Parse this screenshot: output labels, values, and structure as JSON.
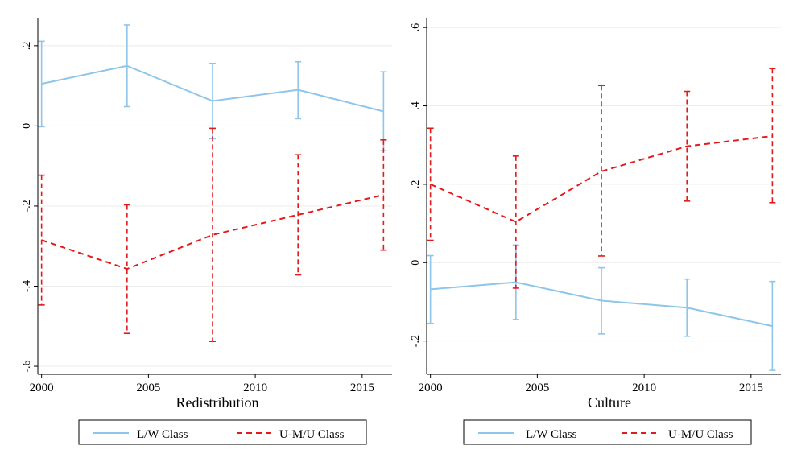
{
  "chart_data": [
    {
      "type": "line",
      "xlabel": "Redistribution",
      "ylabel": "",
      "x": [
        2000,
        2004,
        2008,
        2012,
        2016
      ],
      "xticks": [
        2000,
        2005,
        2010,
        2015
      ],
      "xlim": [
        1999.9,
        2016.4
      ],
      "yticks": [
        0.2,
        0,
        -0.2,
        -0.4,
        -0.6
      ],
      "ytick_labels": [
        ".2",
        "0",
        "-.2",
        "-.4",
        "-.6"
      ],
      "ylim": [
        -0.62,
        0.27
      ],
      "grid": "horizontal",
      "legend_position": "bottom",
      "series": [
        {
          "name": "L/W Class",
          "color": "#8ec5e8",
          "style": "solid",
          "values": [
            0.105,
            0.15,
            0.062,
            0.09,
            0.036
          ],
          "ci_low": [
            -0.002,
            0.048,
            -0.032,
            0.018,
            -0.062
          ],
          "ci_high": [
            0.211,
            0.252,
            0.156,
            0.16,
            0.135
          ]
        },
        {
          "name": "U-M/U Class",
          "color": "#e31a1c",
          "style": "dashed",
          "values": [
            -0.285,
            -0.357,
            -0.272,
            -0.222,
            -0.172
          ],
          "ci_low": [
            -0.447,
            -0.518,
            -0.538,
            -0.372,
            -0.31
          ],
          "ci_high": [
            -0.123,
            -0.197,
            -0.006,
            -0.072,
            -0.035
          ]
        }
      ]
    },
    {
      "type": "line",
      "xlabel": "Culture",
      "ylabel": "",
      "x": [
        2000,
        2004,
        2008,
        2012,
        2016
      ],
      "xticks": [
        2000,
        2005,
        2010,
        2015
      ],
      "xlim": [
        1999.9,
        2016.4
      ],
      "yticks": [
        0.6,
        0.4,
        0.2,
        0,
        -0.2
      ],
      "ytick_labels": [
        ".6",
        ".4",
        ".2",
        "0",
        "-.2"
      ],
      "ylim": [
        -0.285,
        0.625
      ],
      "grid": "horizontal",
      "legend_position": "bottom",
      "series": [
        {
          "name": "L/W Class",
          "color": "#8ec5e8",
          "style": "solid",
          "values": [
            -0.068,
            -0.05,
            -0.097,
            -0.115,
            -0.162
          ],
          "ci_low": [
            -0.155,
            -0.145,
            -0.182,
            -0.188,
            -0.275
          ],
          "ci_high": [
            0.018,
            0.045,
            -0.013,
            -0.042,
            -0.048
          ]
        },
        {
          "name": "U-M/U Class",
          "color": "#e31a1c",
          "style": "dashed",
          "values": [
            0.2,
            0.104,
            0.233,
            0.297,
            0.323
          ],
          "ci_low": [
            0.057,
            -0.065,
            0.017,
            0.157,
            0.153
          ],
          "ci_high": [
            0.343,
            0.272,
            0.452,
            0.437,
            0.495
          ]
        }
      ]
    }
  ]
}
